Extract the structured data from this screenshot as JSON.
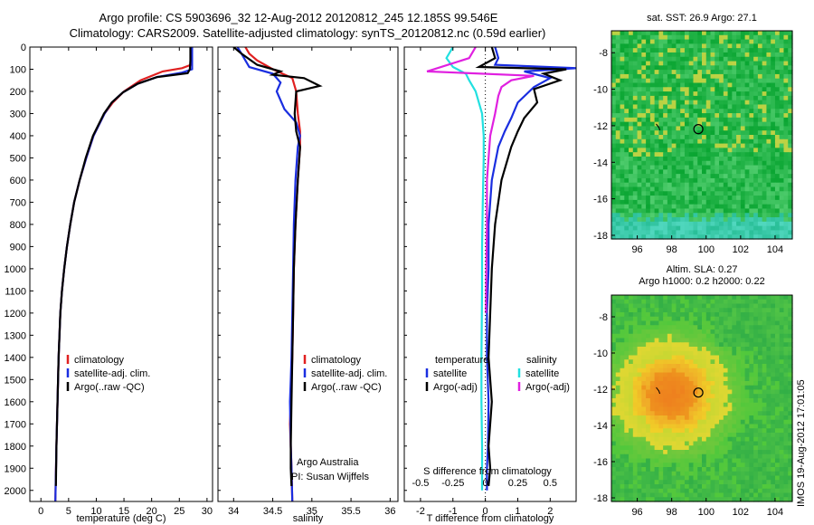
{
  "header": {
    "title_line1": "Argo profile: CS 5903696_32 12-Aug-2012 20120812_245 12.185S 99.546E",
    "title_line2": "Climatology: CARS2009. Satellite-adjusted climatology: synTS_20120812.nc (0.59d earlier)"
  },
  "colors": {
    "climatology": "#e02020",
    "satellite": "#1a2ee0",
    "argo": "#000000",
    "sal_satellite": "#22e0e0",
    "sal_argo": "#e020e0"
  },
  "chart_data": [
    {
      "type": "line",
      "panel": "temperature",
      "xlabel": "temperature (deg C)",
      "xlim": [
        -2,
        31
      ],
      "ylim": [
        2050,
        0
      ],
      "xticks": [
        "0",
        "5",
        "10",
        "15",
        "20",
        "25",
        "30"
      ],
      "yticks": [
        "0",
        "100",
        "200",
        "300",
        "400",
        "500",
        "600",
        "700",
        "800",
        "900",
        "1000",
        "1100",
        "1200",
        "1300",
        "1400",
        "1500",
        "1600",
        "1700",
        "1800",
        "1900",
        "2000"
      ],
      "legend": [
        "climatology",
        "satellite-adj. clim.",
        "Argo(..raw -QC)"
      ],
      "series": [
        {
          "name": "climatology",
          "color": "#e02020",
          "x": [
            27.2,
            27.2,
            27.1,
            25.5,
            22.0,
            18.0,
            15.0,
            13.0,
            11.5,
            10.5,
            9.5,
            8.2,
            7.0,
            6.0,
            5.3,
            4.7,
            4.2,
            3.8,
            3.5,
            3.2,
            3.0,
            2.8,
            2.6
          ],
          "y": [
            0,
            60,
            80,
            95,
            110,
            150,
            200,
            250,
            300,
            350,
            400,
            500,
            600,
            700,
            800,
            900,
            1000,
            1100,
            1200,
            1400,
            1600,
            1800,
            2050
          ]
        },
        {
          "name": "satellite-adj. clim.",
          "color": "#1a2ee0",
          "x": [
            27.3,
            27.3,
            27.3,
            25.5,
            21.0,
            17.5,
            14.8,
            12.8,
            11.5,
            10.5,
            9.5,
            8.2,
            7.0,
            6.0,
            5.3,
            4.7,
            4.2,
            3.8,
            3.5,
            3.2,
            3.0,
            2.8,
            2.6
          ],
          "y": [
            0,
            60,
            100,
            115,
            135,
            165,
            205,
            250,
            300,
            350,
            400,
            500,
            600,
            700,
            800,
            900,
            1000,
            1100,
            1200,
            1400,
            1600,
            1800,
            2050
          ]
        },
        {
          "name": "Argo(..raw -QC)",
          "color": "#000000",
          "x": [
            27.0,
            27.0,
            26.9,
            26.5,
            21.0,
            17.5,
            14.8,
            12.8,
            11.4,
            10.4,
            9.4,
            8.1,
            7.0,
            6.0,
            5.3,
            4.7,
            4.2,
            3.8,
            3.5,
            3.2,
            3.0,
            2.8,
            2.7
          ],
          "y": [
            0,
            60,
            100,
            118,
            135,
            165,
            205,
            250,
            300,
            350,
            400,
            500,
            600,
            700,
            800,
            900,
            1000,
            1100,
            1200,
            1400,
            1600,
            1800,
            1980
          ]
        }
      ]
    },
    {
      "type": "line",
      "panel": "salinity",
      "xlabel": "salinity",
      "xlim": [
        33.8,
        36.1
      ],
      "ylim": [
        2050,
        0
      ],
      "xticks": [
        "34",
        "34.5",
        "35",
        "35.5",
        "36"
      ],
      "legend": [
        "climatology",
        "satellite-adj. clim.",
        "Argo(..raw -QC)"
      ],
      "annotation": [
        "Argo Australia",
        "PI: Susan Wijffels"
      ],
      "series": [
        {
          "name": "climatology",
          "color": "#e02020",
          "x": [
            34.15,
            34.2,
            34.3,
            34.5,
            34.75,
            34.8,
            34.82,
            34.85,
            34.85,
            34.82,
            34.79,
            34.77,
            34.76,
            34.75,
            34.74,
            34.73,
            34.72,
            34.73,
            34.74,
            34.75
          ],
          "y": [
            0,
            30,
            60,
            100,
            140,
            200,
            300,
            380,
            450,
            600,
            800,
            1000,
            1200,
            1400,
            1500,
            1600,
            1700,
            1800,
            1900,
            2050
          ]
        },
        {
          "name": "satellite-adj. clim.",
          "color": "#1a2ee0",
          "x": [
            34.05,
            34.1,
            34.15,
            34.2,
            34.5,
            34.6,
            34.55,
            34.65,
            34.8,
            34.85,
            34.82,
            34.79,
            34.77,
            34.76,
            34.75,
            34.74,
            34.73,
            34.72,
            34.73,
            34.74,
            34.75
          ],
          "y": [
            0,
            30,
            60,
            90,
            120,
            160,
            200,
            280,
            340,
            400,
            450,
            600,
            800,
            1000,
            1200,
            1400,
            1500,
            1600,
            1800,
            1900,
            2050
          ]
        },
        {
          "name": "Argo(..raw -QC)",
          "color": "#000000",
          "x": [
            34.0,
            34.1,
            34.3,
            34.6,
            34.5,
            34.9,
            35.1,
            34.8,
            34.78,
            34.8,
            34.85,
            34.82,
            34.79,
            34.77,
            34.76,
            34.75,
            34.74,
            34.73,
            34.73,
            34.74
          ],
          "y": [
            0,
            30,
            80,
            110,
            125,
            140,
            175,
            200,
            300,
            380,
            450,
            600,
            800,
            1000,
            1200,
            1400,
            1600,
            1800,
            1900,
            1980
          ]
        }
      ]
    },
    {
      "type": "line",
      "panel": "difference",
      "xlabel": "T difference from climatology",
      "xlabel2": "S difference from climatology",
      "xlim": [
        -2.5,
        2.8
      ],
      "ylim": [
        2050,
        0
      ],
      "xticks": [
        "-2",
        "-1",
        "0",
        "1",
        "2"
      ],
      "xticks2": [
        "-0.5",
        "-0.25",
        "0",
        "0.25",
        "0.5"
      ],
      "legend_headers": [
        "temperature",
        "salinity"
      ],
      "legend": [
        "satellite",
        "Argo(-adj)",
        "satellite",
        "Argo(-adj)"
      ],
      "series": [
        {
          "name": "temperature satellite",
          "color": "#1a2ee0",
          "x": [
            0.3,
            0.4,
            0.3,
            2.8,
            1.2,
            2.0,
            1.5,
            1.0,
            0.8,
            0.6,
            0.4,
            0.2,
            0.1,
            0.1,
            0.05,
            0.05,
            0.1,
            0.08,
            0.05,
            0.05
          ],
          "y": [
            0,
            50,
            80,
            95,
            110,
            140,
            180,
            250,
            320,
            380,
            450,
            600,
            800,
            1000,
            1200,
            1400,
            1600,
            1800,
            1900,
            2000
          ]
        },
        {
          "name": "temperature Argo(-adj)",
          "color": "#000000",
          "x": [
            0.2,
            0.3,
            -0.2,
            2.5,
            1.8,
            2.3,
            1.5,
            1.6,
            1.2,
            1.0,
            0.8,
            0.5,
            0.3,
            0.2,
            0.15,
            0.1,
            0.2,
            0.1,
            0.15,
            0.1
          ],
          "y": [
            0,
            50,
            90,
            100,
            120,
            150,
            190,
            250,
            320,
            380,
            450,
            600,
            800,
            1000,
            1200,
            1400,
            1600,
            1800,
            1900,
            1980
          ]
        },
        {
          "name": "salinity satellite",
          "color": "#22e0e0",
          "x": [
            -1.0,
            -1.2,
            -1.0,
            -0.6,
            -0.5,
            -0.3,
            -0.1,
            -0.05,
            -0.05,
            -0.08,
            -0.1,
            -0.1,
            -0.12,
            -0.12,
            -0.1,
            -0.1
          ],
          "y": [
            0,
            50,
            90,
            120,
            150,
            200,
            300,
            400,
            500,
            700,
            900,
            1100,
            1400,
            1600,
            1800,
            2000
          ]
        },
        {
          "name": "salinity Argo(-adj)",
          "color": "#e020e0",
          "x": [
            -0.3,
            -0.5,
            -1.8,
            1.5,
            0.8,
            0.5,
            0.4,
            0.3,
            0.15,
            0.1,
            0.05,
            0.05,
            0.03,
            0.02
          ],
          "y": [
            0,
            50,
            110,
            130,
            150,
            180,
            220,
            300,
            400,
            500,
            600,
            800,
            1000,
            1200
          ]
        }
      ]
    },
    {
      "type": "heatmap",
      "panel": "map-sst",
      "title": "sat. SST: 26.9 Argo: 27.1",
      "xlim": [
        94.5,
        105
      ],
      "ylim": [
        -18.2,
        -6.8
      ],
      "xticks": [
        "96",
        "98",
        "100",
        "102",
        "104"
      ],
      "yticks": [
        "-8",
        "-10",
        "-12",
        "-14",
        "-16",
        "-18"
      ],
      "float_position": {
        "lon": 99.546,
        "lat": -12.185
      }
    },
    {
      "type": "heatmap",
      "panel": "map-sla",
      "title_line1": "Altim. SLA: 0.27",
      "title_line2": "Argo h1000: 0.2 h2000: 0.22",
      "xlim": [
        94.5,
        105
      ],
      "ylim": [
        -18.2,
        -6.8
      ],
      "xticks": [
        "96",
        "98",
        "100",
        "102",
        "104"
      ],
      "yticks": [
        "-8",
        "-10",
        "-12",
        "-14",
        "-16",
        "-18"
      ],
      "float_position": {
        "lon": 99.546,
        "lat": -12.185
      }
    }
  ],
  "footer": {
    "stamp": "IMOS 19-Aug-2012 17:01:05"
  }
}
